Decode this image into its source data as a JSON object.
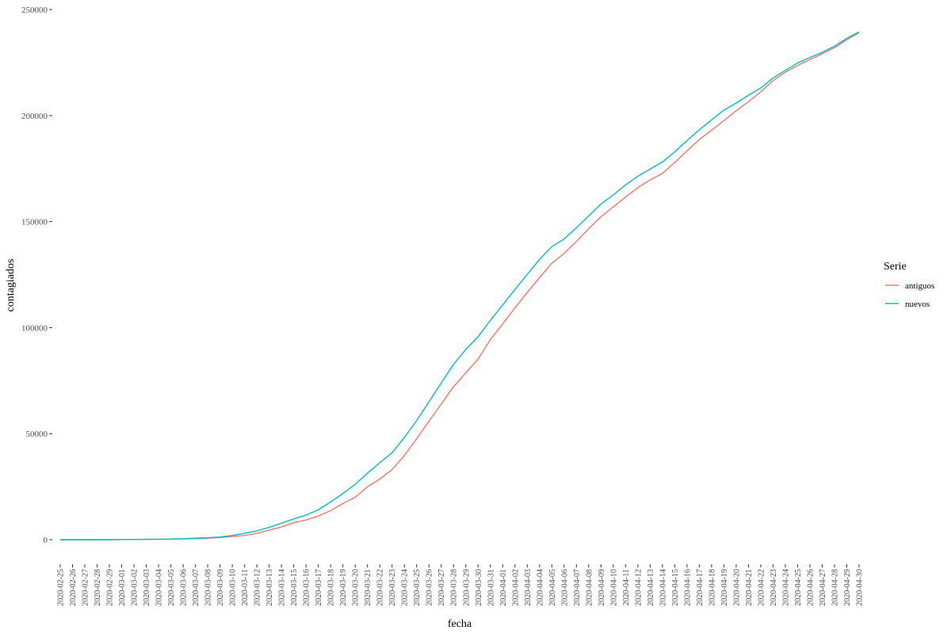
{
  "chart_data": {
    "type": "line",
    "xlabel": "fecha",
    "ylabel": "contagiados",
    "ylim": [
      0,
      250000
    ],
    "y_ticks": [
      0,
      50000,
      100000,
      150000,
      200000,
      250000
    ],
    "y_tick_labels": [
      "0",
      "50000",
      "100000",
      "150000",
      "200000",
      "250000"
    ],
    "grid": false,
    "legend": {
      "title": "Serie",
      "placement": "right"
    },
    "x": [
      "2020-02-25",
      "2020-02-26",
      "2020-02-27",
      "2020-02-28",
      "2020-02-29",
      "2020-03-01",
      "2020-03-02",
      "2020-03-03",
      "2020-03-04",
      "2020-03-05",
      "2020-03-06",
      "2020-03-07",
      "2020-03-08",
      "2020-03-09",
      "2020-03-10",
      "2020-03-11",
      "2020-03-12",
      "2020-03-13",
      "2020-03-14",
      "2020-03-15",
      "2020-03-16",
      "2020-03-17",
      "2020-03-18",
      "2020-03-19",
      "2020-03-20",
      "2020-03-21",
      "2020-03-22",
      "2020-03-23",
      "2020-03-24",
      "2020-03-25",
      "2020-03-26",
      "2020-03-27",
      "2020-03-28",
      "2020-03-29",
      "2020-03-30",
      "2020-03-31",
      "2020-04-01",
      "2020-04-02",
      "2020-04-03",
      "2020-04-04",
      "2020-04-05",
      "2020-04-06",
      "2020-04-07",
      "2020-04-08",
      "2020-04-09",
      "2020-04-10",
      "2020-04-11",
      "2020-04-12",
      "2020-04-13",
      "2020-04-14",
      "2020-04-15",
      "2020-04-16",
      "2020-04-17",
      "2020-04-18",
      "2020-04-19",
      "2020-04-20",
      "2020-04-21",
      "2020-04-22",
      "2020-04-23",
      "2020-04-24",
      "2020-04-25",
      "2020-04-26",
      "2020-04-27",
      "2020-04-28",
      "2020-04-29",
      "2020-04-30"
    ],
    "x_tick_labels": [
      "2020-02-25",
      "2020-02-26",
      "2020-02-27",
      "2020-02-28",
      "2020-02-29",
      "2020-03-01",
      "2020-03-02",
      "2020-03-03",
      "2020-03-04",
      "2020-03-05",
      "2020-03-06",
      "2020-03-07",
      "2020-03-08",
      "2020-03-09",
      "2020-03-10",
      "2020-03-11",
      "2020-03-12",
      "2020-03-13",
      "2020-03-14",
      "2020-03-15",
      "2020-03-16",
      "2020-03-17",
      "2020-03-18",
      "2020-03-19",
      "2020-03-20",
      "2020-03-21",
      "2020-03-22",
      "2020-03-23",
      "2020-03-24",
      "2020-03-25",
      "2020-03-26",
      "2020-03-27",
      "2020-03-28",
      "2020-03-29",
      "2020-03-30",
      "2020-03-31",
      "2020-04-01",
      "2020-04-02",
      "2020-04-03",
      "2020-04-04",
      "2020-04-05",
      "2020-04-06",
      "2020-04-07",
      "2020-04-08",
      "2020-04-09",
      "2020-04-10",
      "2020-04-11",
      "2020-04-12",
      "2020-04-13",
      "2020-04-14",
      "2020-04-15",
      "2020-04-16",
      "2020-04-17",
      "2020-04-18",
      "2020-04-19",
      "2020-04-20",
      "2020-04-21",
      "2020-04-22",
      "2020-04-23",
      "2020-04-24",
      "2020-04-25",
      "2020-04-26",
      "2020-04-27",
      "2020-04-28",
      "2020-04-29",
      "2020-04-30"
    ],
    "series": [
      {
        "name": "antiguos",
        "color": "#F8766D",
        "values": [
          0,
          0,
          0,
          0,
          0,
          80,
          100,
          150,
          200,
          250,
          400,
          500,
          700,
          1000,
          1500,
          2000,
          3000,
          4500,
          6000,
          8000,
          9300,
          11200,
          13700,
          17100,
          20000,
          25000,
          28600,
          33100,
          39700,
          47600,
          55900,
          64000,
          72200,
          78700,
          85200,
          94400,
          101700,
          109400,
          116600,
          123600,
          130400,
          135000,
          140600,
          146700,
          152300,
          157000,
          161600,
          166000,
          169700,
          172700,
          177900,
          183400,
          188700,
          193100,
          197600,
          202300,
          206600,
          211200,
          216400,
          220500,
          223600,
          226400,
          229100,
          232000,
          235800,
          239000
        ]
      },
      {
        "name": "nuevos",
        "color": "#00BFC4",
        "values": [
          0,
          0,
          0,
          0,
          0,
          80,
          100,
          150,
          200,
          300,
          500,
          700,
          900,
          1300,
          2000,
          3000,
          4200,
          5800,
          7800,
          9800,
          11600,
          14100,
          17800,
          21800,
          26100,
          31400,
          36300,
          41000,
          48200,
          56200,
          65000,
          73900,
          82700,
          89700,
          95700,
          103500,
          110700,
          118000,
          125100,
          132200,
          138200,
          141800,
          147100,
          152700,
          158300,
          162600,
          167300,
          171400,
          174800,
          178100,
          182900,
          188200,
          193300,
          198000,
          202600,
          205900,
          209600,
          213000,
          217700,
          221300,
          224800,
          227400,
          229800,
          232700,
          236400,
          239500
        ]
      }
    ]
  }
}
